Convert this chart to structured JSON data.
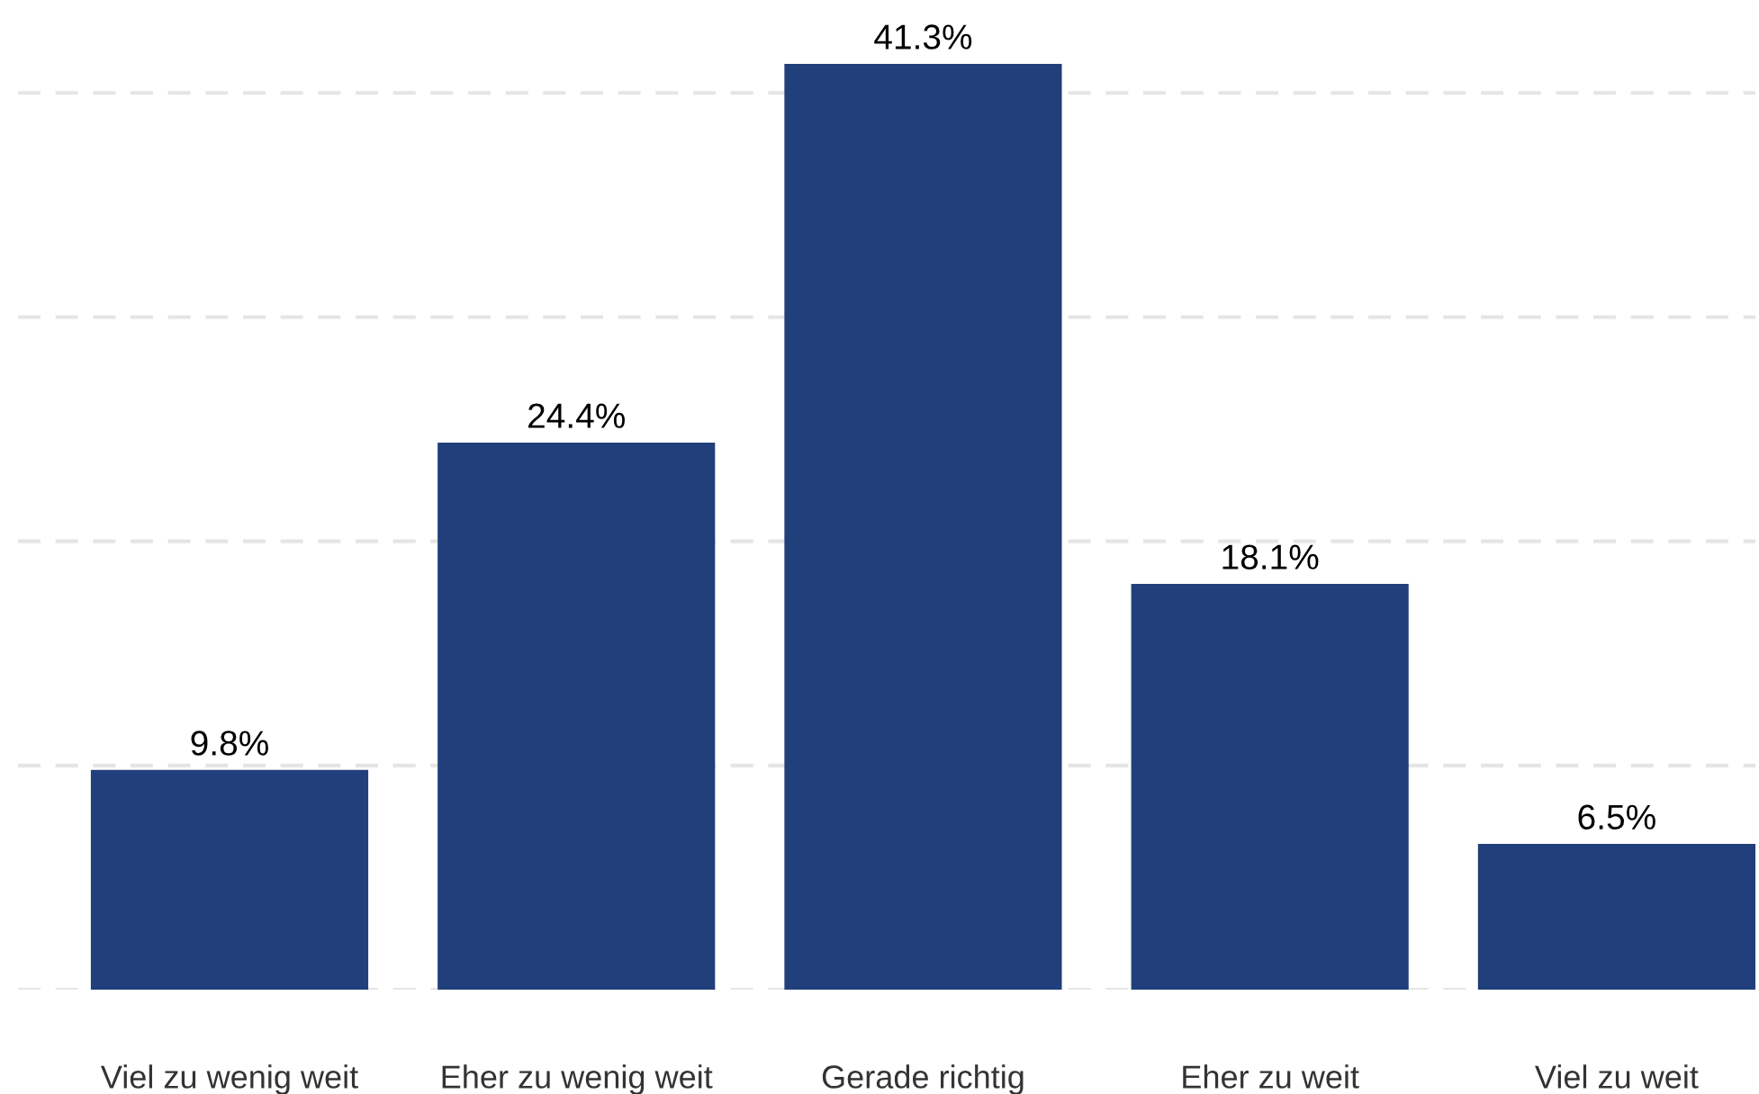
{
  "chart_data": {
    "type": "bar",
    "categories": [
      "Viel zu wenig weit",
      "Eher zu wenig weit",
      "Gerade richtig",
      "Eher zu weit",
      "Viel zu weit"
    ],
    "values": [
      9.8,
      24.4,
      41.3,
      18.1,
      6.5
    ],
    "color": "#213f7a",
    "yticks": [
      {
        "value": 0,
        "label": null
      },
      {
        "value": 10,
        "label": null
      },
      {
        "value": 20,
        "label": null
      },
      {
        "value": 30,
        "label": null
      },
      {
        "value": 40,
        "label": null
      }
    ],
    "value_labels": [
      "9.8%",
      "24.4%",
      "41.3%",
      "18.1%",
      "6.5%"
    ],
    "grid": "y",
    "tick_labels": "x"
  }
}
